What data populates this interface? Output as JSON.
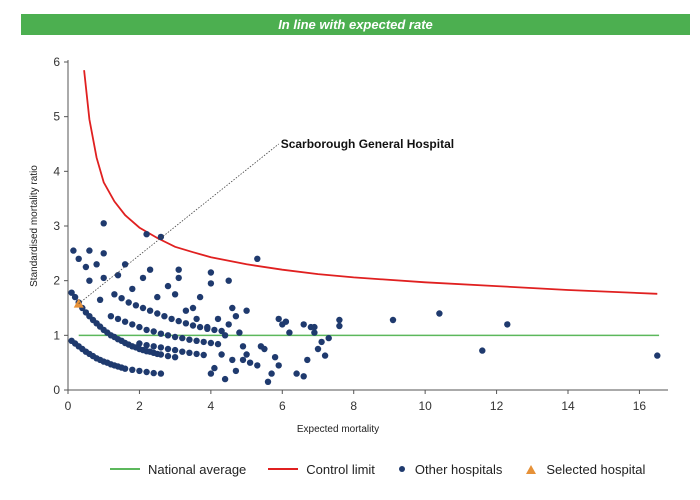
{
  "header": {
    "banner": "In line with expected rate"
  },
  "colors": {
    "banner_bg": "#4caf50",
    "national": "#5cb85c",
    "control": "#e02020",
    "other": "#1f3a6e",
    "selected": "#e69138"
  },
  "legend": {
    "national": "National average",
    "control": "Control limit",
    "other": "Other hospitals",
    "selected": "Selected hospital"
  },
  "chart_data": {
    "type": "scatter",
    "title": "",
    "xlabel": "Expected mortality",
    "ylabel": "Standardised mortality ratio",
    "xlim": [
      0,
      16.8
    ],
    "ylim": [
      0,
      6
    ],
    "xticks": [
      0,
      2,
      4,
      6,
      8,
      10,
      12,
      14,
      16
    ],
    "yticks": [
      0,
      1,
      2,
      3,
      4,
      5,
      6
    ],
    "grid": false,
    "legend_position": "bottom",
    "national_average": 1,
    "control_limit": {
      "x": [
        0.45,
        0.6,
        0.8,
        1.0,
        1.3,
        1.6,
        2.0,
        2.5,
        3.0,
        3.5,
        4.0,
        5.0,
        6.0,
        7.0,
        8.0,
        10.0,
        12.0,
        14.0,
        16.5
      ],
      "y": [
        5.85,
        4.95,
        4.25,
        3.8,
        3.45,
        3.2,
        2.97,
        2.78,
        2.62,
        2.52,
        2.43,
        2.3,
        2.2,
        2.12,
        2.06,
        1.97,
        1.9,
        1.83,
        1.76
      ]
    },
    "selected_hospital": {
      "name": "Scarborough General Hospital",
      "x": 0.3,
      "y": 1.58
    },
    "annotation_target": {
      "x": 5.9,
      "y": 4.5
    },
    "series": [
      {
        "name": "Other hospitals",
        "points": [
          [
            0.15,
            2.55
          ],
          [
            0.3,
            2.4
          ],
          [
            0.5,
            2.25
          ],
          [
            0.6,
            2.0
          ],
          [
            0.6,
            2.55
          ],
          [
            0.8,
            2.3
          ],
          [
            0.9,
            1.65
          ],
          [
            1.0,
            3.05
          ],
          [
            1.0,
            2.5
          ],
          [
            1.0,
            2.05
          ],
          [
            1.4,
            2.1
          ],
          [
            1.6,
            2.3
          ],
          [
            1.8,
            1.85
          ],
          [
            2.2,
            2.85
          ],
          [
            2.6,
            2.8
          ],
          [
            2.1,
            2.05
          ],
          [
            2.3,
            2.2
          ],
          [
            2.5,
            1.7
          ],
          [
            2.8,
            1.9
          ],
          [
            3.0,
            1.75
          ],
          [
            3.1,
            2.05
          ],
          [
            3.1,
            2.2
          ],
          [
            3.5,
            1.5
          ],
          [
            3.7,
            1.7
          ],
          [
            4.0,
            2.15
          ],
          [
            4.0,
            1.95
          ],
          [
            4.5,
            2.0
          ],
          [
            5.3,
            2.4
          ],
          [
            3.3,
            1.45
          ],
          [
            3.6,
            1.3
          ],
          [
            3.9,
            1.15
          ],
          [
            4.2,
            1.3
          ],
          [
            4.4,
            1.0
          ],
          [
            4.5,
            1.2
          ],
          [
            4.6,
            1.5
          ],
          [
            4.7,
            1.35
          ],
          [
            4.8,
            1.05
          ],
          [
            4.9,
            0.8
          ],
          [
            5.0,
            0.65
          ],
          [
            5.0,
            1.45
          ],
          [
            4.6,
            0.55
          ],
          [
            4.3,
            0.65
          ],
          [
            4.1,
            0.4
          ],
          [
            4.0,
            0.3
          ],
          [
            4.4,
            0.2
          ],
          [
            4.7,
            0.35
          ],
          [
            4.9,
            0.55
          ],
          [
            5.1,
            0.5
          ],
          [
            5.3,
            0.45
          ],
          [
            5.4,
            0.8
          ],
          [
            5.5,
            0.75
          ],
          [
            5.6,
            0.15
          ],
          [
            5.7,
            0.3
          ],
          [
            5.8,
            0.6
          ],
          [
            5.9,
            0.45
          ],
          [
            5.9,
            1.3
          ],
          [
            6.1,
            1.25
          ],
          [
            6.0,
            1.2
          ],
          [
            6.2,
            1.05
          ],
          [
            6.4,
            0.3
          ],
          [
            6.6,
            1.2
          ],
          [
            6.6,
            0.25
          ],
          [
            6.8,
            1.15
          ],
          [
            6.7,
            0.55
          ],
          [
            6.9,
            1.05
          ],
          [
            6.9,
            1.15
          ],
          [
            7.0,
            0.75
          ],
          [
            7.1,
            0.88
          ],
          [
            7.2,
            0.63
          ],
          [
            7.3,
            0.95
          ],
          [
            7.6,
            1.17
          ],
          [
            7.6,
            1.28
          ],
          [
            9.1,
            1.28
          ],
          [
            10.4,
            1.4
          ],
          [
            11.6,
            0.72
          ],
          [
            12.3,
            1.2
          ],
          [
            16.5,
            0.63
          ],
          [
            0.1,
            1.78
          ],
          [
            0.2,
            1.7
          ],
          [
            0.3,
            1.6
          ],
          [
            0.4,
            1.5
          ],
          [
            0.5,
            1.42
          ],
          [
            0.6,
            1.35
          ],
          [
            0.7,
            1.28
          ],
          [
            0.8,
            1.22
          ],
          [
            0.9,
            1.16
          ],
          [
            1.0,
            1.1
          ],
          [
            1.1,
            1.05
          ],
          [
            1.2,
            1.0
          ],
          [
            1.3,
            0.97
          ],
          [
            1.4,
            0.93
          ],
          [
            1.5,
            0.9
          ],
          [
            1.6,
            0.86
          ],
          [
            1.7,
            0.83
          ],
          [
            1.8,
            0.8
          ],
          [
            1.9,
            0.78
          ],
          [
            2.0,
            0.75
          ],
          [
            2.1,
            0.73
          ],
          [
            2.2,
            0.71
          ],
          [
            2.3,
            0.7
          ],
          [
            2.4,
            0.68
          ],
          [
            2.5,
            0.66
          ],
          [
            2.6,
            0.65
          ],
          [
            2.8,
            0.62
          ],
          [
            3.0,
            0.6
          ],
          [
            0.1,
            0.9
          ],
          [
            0.2,
            0.85
          ],
          [
            0.3,
            0.8
          ],
          [
            0.4,
            0.75
          ],
          [
            0.5,
            0.7
          ],
          [
            0.6,
            0.66
          ],
          [
            0.7,
            0.62
          ],
          [
            0.8,
            0.58
          ],
          [
            0.9,
            0.55
          ],
          [
            1.0,
            0.52
          ],
          [
            1.1,
            0.5
          ],
          [
            1.2,
            0.47
          ],
          [
            1.3,
            0.45
          ],
          [
            1.4,
            0.43
          ],
          [
            1.5,
            0.41
          ],
          [
            1.6,
            0.39
          ],
          [
            1.8,
            0.37
          ],
          [
            2.0,
            0.35
          ],
          [
            2.2,
            0.33
          ],
          [
            2.4,
            0.31
          ],
          [
            2.6,
            0.3
          ],
          [
            1.2,
            1.35
          ],
          [
            1.4,
            1.3
          ],
          [
            1.6,
            1.25
          ],
          [
            1.8,
            1.2
          ],
          [
            2.0,
            1.15
          ],
          [
            2.2,
            1.1
          ],
          [
            2.4,
            1.07
          ],
          [
            2.6,
            1.03
          ],
          [
            2.8,
            1.0
          ],
          [
            3.0,
            0.97
          ],
          [
            3.2,
            0.95
          ],
          [
            3.4,
            0.92
          ],
          [
            3.6,
            0.9
          ],
          [
            3.8,
            0.88
          ],
          [
            4.0,
            0.86
          ],
          [
            4.2,
            0.84
          ],
          [
            1.3,
            1.75
          ],
          [
            1.5,
            1.68
          ],
          [
            1.7,
            1.6
          ],
          [
            1.9,
            1.55
          ],
          [
            2.1,
            1.5
          ],
          [
            2.3,
            1.45
          ],
          [
            2.5,
            1.4
          ],
          [
            2.7,
            1.35
          ],
          [
            2.9,
            1.3
          ],
          [
            3.1,
            1.26
          ],
          [
            3.3,
            1.22
          ],
          [
            3.5,
            1.18
          ],
          [
            3.7,
            1.15
          ],
          [
            3.9,
            1.12
          ],
          [
            4.1,
            1.1
          ],
          [
            4.3,
            1.08
          ],
          [
            2.0,
            0.85
          ],
          [
            2.2,
            0.82
          ],
          [
            2.4,
            0.8
          ],
          [
            2.6,
            0.78
          ],
          [
            2.8,
            0.75
          ],
          [
            3.0,
            0.73
          ],
          [
            3.2,
            0.7
          ],
          [
            3.4,
            0.68
          ],
          [
            3.6,
            0.66
          ],
          [
            3.8,
            0.64
          ]
        ]
      }
    ]
  }
}
